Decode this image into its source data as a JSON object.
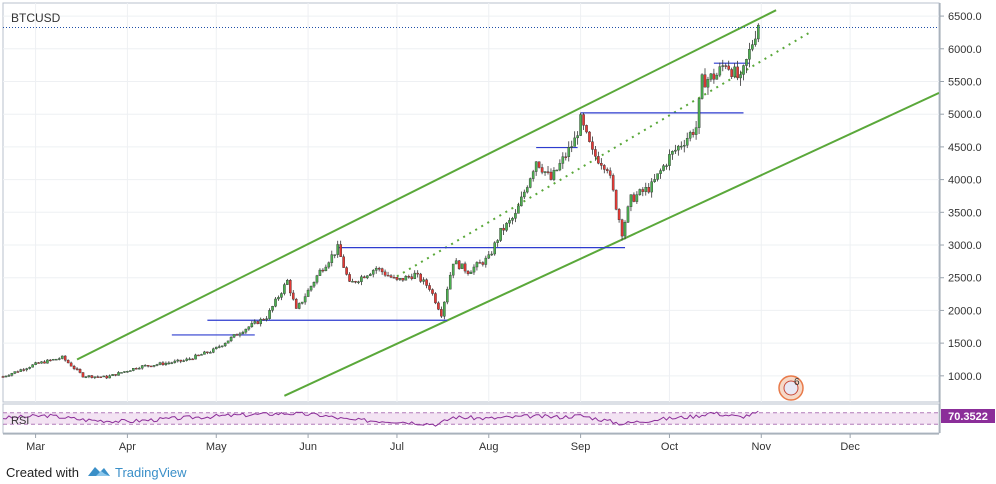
{
  "chart_data": {
    "type": "candlestick",
    "symbol": "BTCUSD",
    "ylim": [
      600,
      6700
    ],
    "y_ticks": [
      1000,
      1500,
      2000,
      2500,
      3000,
      3500,
      4000,
      4500,
      5000,
      5500,
      6000,
      6500
    ],
    "x_tick_labels": [
      "Mar",
      "Apr",
      "May",
      "Jun",
      "Jul",
      "Aug",
      "Sep",
      "Oct",
      "Nov",
      "Dec"
    ],
    "x_domain": [
      "2017-02-18",
      "2017-12-31"
    ],
    "last_price_line": 6325,
    "colors": {
      "up": "#4caf50",
      "down": "#e53935",
      "channel": "#5aa83a",
      "support": "#2e3ccf",
      "rsi": "#8b2e99",
      "price_line": "#1f4fa8"
    },
    "keypoints": [
      [
        "2017-02-18",
        990
      ],
      [
        "2017-03-01",
        1180
      ],
      [
        "2017-03-10",
        1280
      ],
      [
        "2017-03-17",
        1000
      ],
      [
        "2017-03-25",
        980
      ],
      [
        "2017-04-05",
        1140
      ],
      [
        "2017-04-20",
        1230
      ],
      [
        "2017-04-30",
        1390
      ],
      [
        "2017-05-10",
        1700
      ],
      [
        "2017-05-18",
        1900
      ],
      [
        "2017-05-25",
        2450
      ],
      [
        "2017-05-28",
        2000
      ],
      [
        "2017-06-05",
        2600
      ],
      [
        "2017-06-11",
        2950
      ],
      [
        "2017-06-15",
        2400
      ],
      [
        "2017-06-24",
        2650
      ],
      [
        "2017-07-01",
        2450
      ],
      [
        "2017-07-07",
        2550
      ],
      [
        "2017-07-12",
        2350
      ],
      [
        "2017-07-16",
        1950
      ],
      [
        "2017-07-20",
        2750
      ],
      [
        "2017-07-25",
        2600
      ],
      [
        "2017-08-01",
        2800
      ],
      [
        "2017-08-05",
        3200
      ],
      [
        "2017-08-10",
        3450
      ],
      [
        "2017-08-17",
        4300
      ],
      [
        "2017-08-22",
        4000
      ],
      [
        "2017-08-30",
        4600
      ],
      [
        "2017-09-01",
        4900
      ],
      [
        "2017-09-05",
        4400
      ],
      [
        "2017-09-10",
        4200
      ],
      [
        "2017-09-15",
        3200
      ],
      [
        "2017-09-18",
        3700
      ],
      [
        "2017-09-25",
        3900
      ],
      [
        "2017-10-01",
        4350
      ],
      [
        "2017-10-10",
        4800
      ],
      [
        "2017-10-12",
        5500
      ],
      [
        "2017-10-17",
        5600
      ],
      [
        "2017-10-20",
        5800
      ],
      [
        "2017-10-25",
        5500
      ],
      [
        "2017-10-31",
        6400
      ]
    ],
    "channel_lines": [
      {
        "name": "upper-channel",
        "dashed": false,
        "points": [
          [
            "2017-03-15",
            1250
          ],
          [
            "2017-11-06",
            6590
          ]
        ]
      },
      {
        "name": "lower-channel",
        "dashed": false,
        "points": [
          [
            "2017-05-24",
            695
          ],
          [
            "2017-12-31",
            5325
          ]
        ]
      },
      {
        "name": "middle-channel",
        "dashed": true,
        "points": [
          [
            "2017-07-01",
            2520
          ],
          [
            "2017-11-17",
            6240
          ]
        ]
      }
    ],
    "support_lines": [
      {
        "y": 1625,
        "from": "2017-04-16",
        "to": "2017-05-14"
      },
      {
        "y": 1850,
        "from": "2017-04-28",
        "to": "2017-07-18"
      },
      {
        "y": 2960,
        "from": "2017-06-11",
        "to": "2017-09-16"
      },
      {
        "y": 4490,
        "from": "2017-08-17",
        "to": "2017-08-31"
      },
      {
        "y": 5020,
        "from": "2017-09-01",
        "to": "2017-10-26"
      },
      {
        "y": 5780,
        "from": "2017-10-16",
        "to": "2017-10-28"
      }
    ],
    "rsi": {
      "label": "RSI",
      "value_label": "70.3522",
      "ylim": [
        0,
        100
      ],
      "levels": [
        70,
        30
      ],
      "keypoints": [
        [
          "2017-02-18",
          52
        ],
        [
          "2017-03-05",
          60
        ],
        [
          "2017-03-18",
          45
        ],
        [
          "2017-04-01",
          40
        ],
        [
          "2017-04-20",
          52
        ],
        [
          "2017-05-05",
          60
        ],
        [
          "2017-05-25",
          68
        ],
        [
          "2017-06-05",
          62
        ],
        [
          "2017-06-15",
          45
        ],
        [
          "2017-07-01",
          40
        ],
        [
          "2017-07-15",
          30
        ],
        [
          "2017-07-20",
          55
        ],
        [
          "2017-08-01",
          50
        ],
        [
          "2017-08-15",
          58
        ],
        [
          "2017-08-25",
          55
        ],
        [
          "2017-09-01",
          60
        ],
        [
          "2017-09-15",
          32
        ],
        [
          "2017-09-25",
          45
        ],
        [
          "2017-10-10",
          58
        ],
        [
          "2017-10-15",
          70
        ],
        [
          "2017-10-25",
          55
        ],
        [
          "2017-10-31",
          70
        ]
      ]
    },
    "badge_text": "6"
  },
  "footer": {
    "created_with": "Created with",
    "brand": "TradingView"
  }
}
